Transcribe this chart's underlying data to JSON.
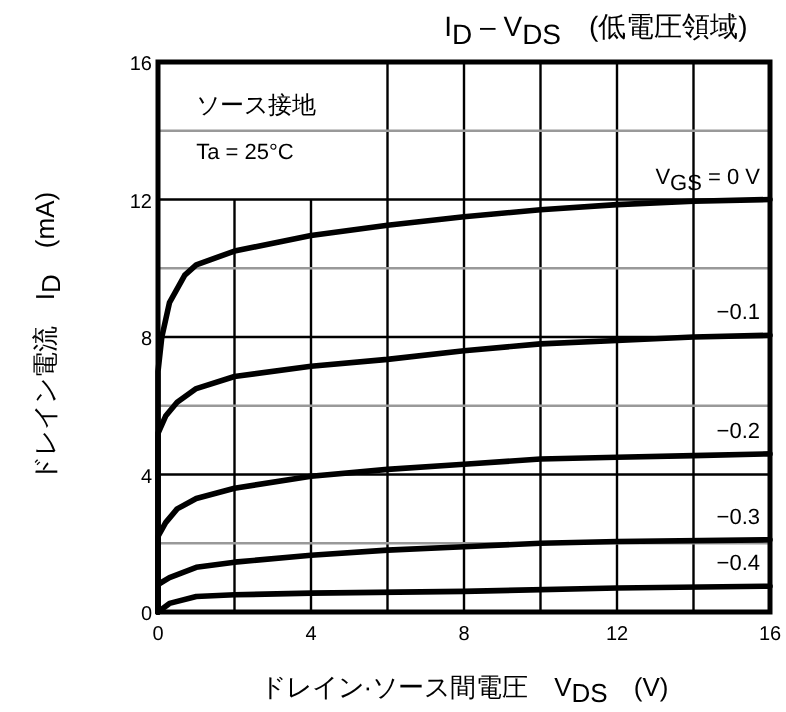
{
  "chart_data": {
    "type": "line",
    "title": "I$_{D}$ – V$_{DS}$　(低電圧領域)",
    "xlabel": "ドレイン·ソース間電圧　V$_{DS}$　(V)",
    "ylabel": "ドレイン電流　I$_{D}$　(mA)",
    "annotations": [
      "ソース接地",
      "Ta = 25°C"
    ],
    "xlim": [
      0,
      16
    ],
    "ylim": [
      0,
      16
    ],
    "xticks": [
      0,
      {
        "value": 2,
        "label": null
      },
      4,
      {
        "value": 6,
        "label": null
      },
      8,
      {
        "value": 10,
        "label": null
      },
      12,
      {
        "value": 14,
        "label": null
      },
      16
    ],
    "yticks": [
      0,
      {
        "value": 2,
        "label": null
      },
      4,
      {
        "value": 6,
        "label": null
      },
      8,
      {
        "value": 10,
        "label": null
      },
      12,
      {
        "value": 14,
        "label": null
      },
      16
    ],
    "grid": true,
    "legend": false,
    "marker": "none",
    "line_style": "solid",
    "series": [
      {
        "name": "V$_{GS}$ = 0 V",
        "color": "#000000",
        "x": [
          0,
          0,
          0.1,
          0.3,
          0.7,
          1,
          2,
          4,
          6,
          8,
          10,
          12,
          14,
          16
        ],
        "values": [
          0,
          7,
          8,
          9,
          9.8,
          10.1,
          10.5,
          10.95,
          11.25,
          11.5,
          11.7,
          11.85,
          11.95,
          12
        ]
      },
      {
        "name": "−0.1",
        "color": "#000000",
        "x": [
          0,
          0,
          0.2,
          0.5,
          1,
          2,
          4,
          6,
          8,
          10,
          12,
          14,
          16
        ],
        "values": [
          0,
          5.2,
          5.7,
          6.1,
          6.5,
          6.85,
          7.15,
          7.35,
          7.6,
          7.8,
          7.9,
          8,
          8.05
        ]
      },
      {
        "name": "−0.2",
        "color": "#000000",
        "x": [
          0,
          0,
          0.2,
          0.5,
          1,
          2,
          4,
          6,
          8,
          10,
          12,
          14,
          16
        ],
        "values": [
          0,
          2.2,
          2.6,
          3,
          3.3,
          3.6,
          3.95,
          4.15,
          4.3,
          4.45,
          4.5,
          4.55,
          4.6
        ]
      },
      {
        "name": "−0.3",
        "color": "#000000",
        "x": [
          0,
          0,
          0.3,
          1,
          2,
          4,
          6,
          8,
          10,
          12,
          16
        ],
        "values": [
          0,
          0.8,
          1,
          1.3,
          1.45,
          1.65,
          1.8,
          1.9,
          2,
          2.05,
          2.1
        ]
      },
      {
        "name": "−0.4",
        "color": "#000000",
        "x": [
          0,
          0.3,
          1,
          2,
          4,
          8,
          12,
          16
        ],
        "values": [
          0,
          0.25,
          0.45,
          0.5,
          0.55,
          0.6,
          0.7,
          0.75
        ]
      }
    ]
  }
}
